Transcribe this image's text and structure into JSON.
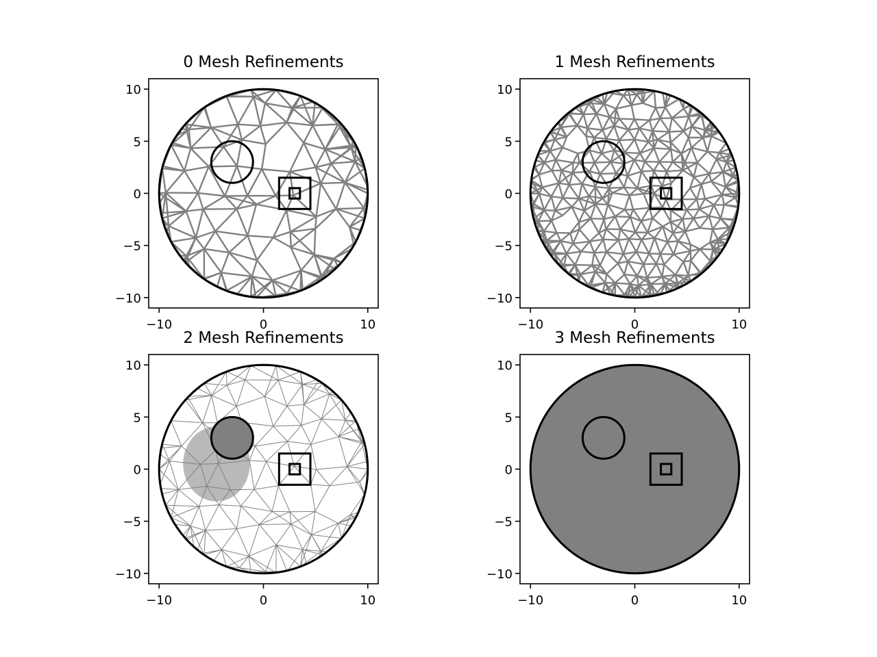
{
  "colors": {
    "mesh": "#808080",
    "outline": "#000000",
    "background": "#ffffff"
  },
  "chart_data": [
    {
      "type": "mesh",
      "title": "0 Mesh Refinements",
      "refinements": 0,
      "xlim": [
        -11,
        11
      ],
      "ylim": [
        -11,
        11
      ],
      "xticks": [
        -10,
        0,
        10
      ],
      "yticks": [
        -10,
        -5,
        0,
        5,
        10
      ],
      "xtick_labels": [
        "−10",
        "0",
        "10"
      ],
      "ytick_labels": [
        "−10",
        "−5",
        "0",
        "5",
        "10"
      ],
      "domain": {
        "outer_circle": {
          "center": [
            0,
            0
          ],
          "radius": 10
        }
      },
      "holes": [
        {
          "shape": "circle",
          "center": [
            -3,
            3
          ],
          "radius": 2
        },
        {
          "shape": "square",
          "center": [
            3,
            0
          ],
          "half_width": 1.5
        },
        {
          "shape": "square",
          "center": [
            3,
            0
          ],
          "half_width": 0.5
        }
      ],
      "fill_mode": "wireframe"
    },
    {
      "type": "mesh",
      "title": "1 Mesh Refinements",
      "refinements": 1,
      "xlim": [
        -11,
        11
      ],
      "ylim": [
        -11,
        11
      ],
      "xticks": [
        -10,
        0,
        10
      ],
      "yticks": [
        -10,
        -5,
        0,
        5,
        10
      ],
      "xtick_labels": [
        "−10",
        "0",
        "10"
      ],
      "ytick_labels": [
        "−10",
        "−5",
        "0",
        "5",
        "10"
      ],
      "domain": {
        "outer_circle": {
          "center": [
            0,
            0
          ],
          "radius": 10
        }
      },
      "holes": [
        {
          "shape": "circle",
          "center": [
            -3,
            3
          ],
          "radius": 2
        },
        {
          "shape": "square",
          "center": [
            3,
            0
          ],
          "half_width": 1.5
        },
        {
          "shape": "square",
          "center": [
            3,
            0
          ],
          "half_width": 0.5
        }
      ],
      "fill_mode": "wireframe"
    },
    {
      "type": "mesh",
      "title": "2 Mesh Refinements",
      "refinements": 2,
      "xlim": [
        -11,
        11
      ],
      "ylim": [
        -11,
        11
      ],
      "xticks": [
        -10,
        0,
        10
      ],
      "yticks": [
        -10,
        -5,
        0,
        5,
        10
      ],
      "xtick_labels": [
        "−10",
        "0",
        "10"
      ],
      "ytick_labels": [
        "−10",
        "−5",
        "0",
        "5",
        "10"
      ],
      "domain": {
        "outer_circle": {
          "center": [
            0,
            0
          ],
          "radius": 10
        }
      },
      "holes": [
        {
          "shape": "circle",
          "center": [
            -3,
            3
          ],
          "radius": 2
        },
        {
          "shape": "square",
          "center": [
            3,
            0
          ],
          "half_width": 1.5
        },
        {
          "shape": "square",
          "center": [
            3,
            0
          ],
          "half_width": 0.5
        }
      ],
      "fill_mode": "dense"
    },
    {
      "type": "mesh",
      "title": "3 Mesh Refinements",
      "refinements": 3,
      "xlim": [
        -11,
        11
      ],
      "ylim": [
        -11,
        11
      ],
      "xticks": [
        -10,
        0,
        10
      ],
      "yticks": [
        -10,
        -5,
        0,
        5,
        10
      ],
      "xtick_labels": [
        "−10",
        "0",
        "10"
      ],
      "ytick_labels": [
        "−10",
        "−5",
        "0",
        "5",
        "10"
      ],
      "domain": {
        "outer_circle": {
          "center": [
            0,
            0
          ],
          "radius": 10
        }
      },
      "holes": [
        {
          "shape": "circle",
          "center": [
            -3,
            3
          ],
          "radius": 2
        },
        {
          "shape": "square",
          "center": [
            3,
            0
          ],
          "half_width": 1.5
        },
        {
          "shape": "square",
          "center": [
            3,
            0
          ],
          "half_width": 0.5
        }
      ],
      "fill_mode": "solid"
    }
  ]
}
